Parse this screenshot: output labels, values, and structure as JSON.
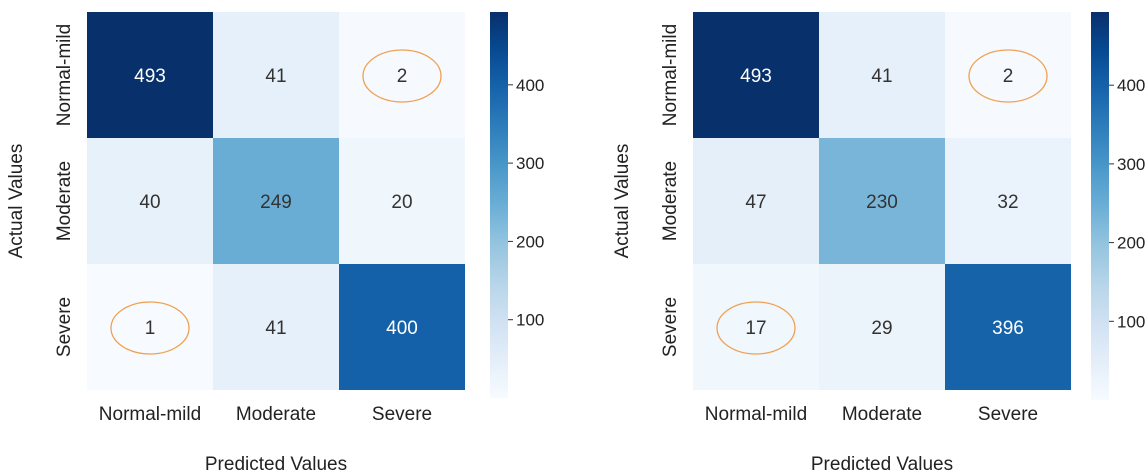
{
  "chart_data": [
    {
      "type": "heatmap",
      "xlabel": "Predicted Values",
      "ylabel": "Actual Values",
      "x_categories": [
        "Normal-mild",
        "Moderate",
        "Severe"
      ],
      "y_categories": [
        "Normal-mild",
        "Moderate",
        "Severe"
      ],
      "values": [
        [
          493,
          41,
          2
        ],
        [
          40,
          249,
          20
        ],
        [
          1,
          41,
          400
        ]
      ],
      "circled_cells": [
        [
          0,
          2
        ],
        [
          2,
          0
        ]
      ],
      "colorbar": {
        "range": [
          0,
          493
        ],
        "ticks": [
          100,
          200,
          300,
          400
        ],
        "colormap": "Blues"
      },
      "grid": false
    },
    {
      "type": "heatmap",
      "xlabel": "Predicted Values",
      "ylabel": "Actual Values",
      "x_categories": [
        "Normal-mild",
        "Moderate",
        "Severe"
      ],
      "y_categories": [
        "Normal-mild",
        "Moderate",
        "Severe"
      ],
      "values": [
        [
          493,
          41,
          2
        ],
        [
          47,
          230,
          32
        ],
        [
          17,
          29,
          396
        ]
      ],
      "circled_cells": [
        [
          0,
          2
        ],
        [
          2,
          0
        ]
      ],
      "colorbar": {
        "range": [
          0,
          493
        ],
        "ticks": [
          100,
          200,
          300,
          400
        ],
        "colormap": "Blues"
      },
      "grid": false
    }
  ],
  "colors": {
    "highlight_ring": "#f0a050",
    "text_dark": "#333333",
    "text_light": "#ffffff"
  }
}
